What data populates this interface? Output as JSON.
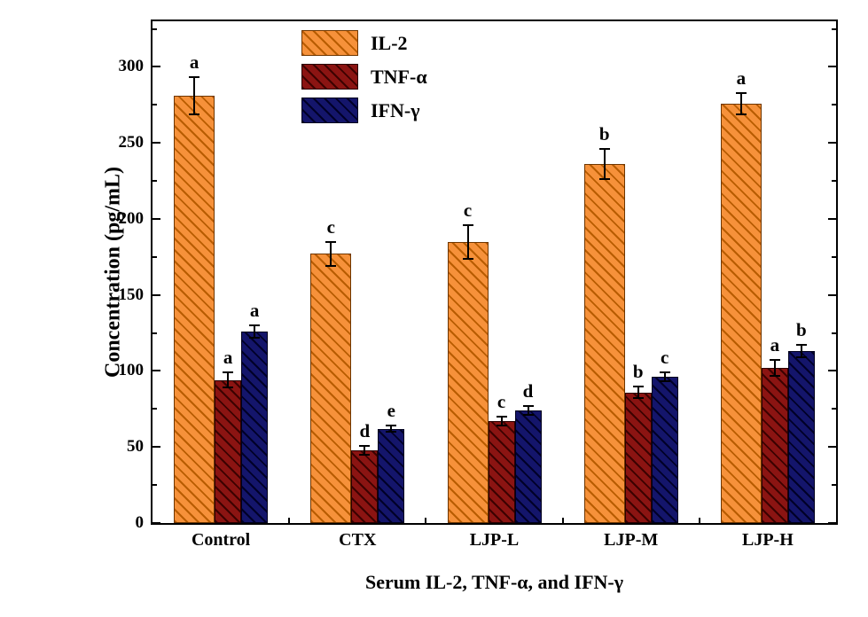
{
  "chart_data": {
    "type": "bar",
    "title": "",
    "xlabel": "Serum IL-2, TNF-α, and IFN-γ",
    "ylabel": "Concentration (pg/mL)",
    "ylim": [
      0,
      330
    ],
    "yticks": [
      0,
      50,
      100,
      150,
      200,
      250,
      300
    ],
    "yticks_minor": [
      25,
      75,
      125,
      175,
      225,
      275,
      325
    ],
    "grid": false,
    "legend_position": "top-left-inner",
    "categories": [
      "Control",
      "CTX",
      "LJP-L",
      "LJP-M",
      "LJP-H"
    ],
    "series": [
      {
        "name": "IL-2",
        "color": "#F6913A",
        "hatch_color": "#b85c00",
        "edge_color": "#6e3600",
        "values": [
          281,
          177,
          185,
          236,
          276
        ],
        "errors": [
          12,
          8,
          11,
          10,
          7
        ],
        "letters": [
          "a",
          "c",
          "c",
          "b",
          "a"
        ]
      },
      {
        "name": "TNF-α",
        "color": "#8B1412",
        "hatch_color": "#3c0200",
        "edge_color": "#2a0000",
        "values": [
          94,
          48,
          67,
          86,
          102
        ],
        "errors": [
          5,
          3,
          3,
          4,
          5
        ],
        "letters": [
          "a",
          "d",
          "c",
          "b",
          "a"
        ]
      },
      {
        "name": "IFN-γ",
        "color": "#14156B",
        "hatch_color": "#000028",
        "edge_color": "#00001c",
        "values": [
          126,
          62,
          74,
          96,
          113
        ],
        "errors": [
          4,
          2,
          3,
          3,
          4
        ],
        "letters": [
          "a",
          "e",
          "d",
          "c",
          "b"
        ]
      }
    ]
  }
}
